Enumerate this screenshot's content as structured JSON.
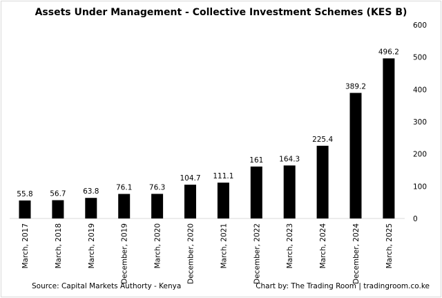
{
  "chart_data": {
    "type": "bar",
    "title": "Assets Under Management - Collective Investment Schemes (KES B)",
    "categories": [
      "March, 2017",
      "March, 2018",
      "March, 2019",
      "December, 2019",
      "March, 2020",
      "December, 2020",
      "March, 2021",
      "December, 2022",
      "March, 2023",
      "March, 2024",
      "December, 2024",
      "March, 2025"
    ],
    "values": [
      55.8,
      56.7,
      63.8,
      76.1,
      76.3,
      104.7,
      111.1,
      161,
      164.3,
      225.4,
      389.2,
      496.2
    ],
    "data_labels": [
      "55.8",
      "56.7",
      "63.8",
      "76.1",
      "76.3",
      "104.7",
      "111.1",
      "161",
      "164.3",
      "225.4",
      "389.2",
      "496.2"
    ],
    "ylim": [
      0,
      600
    ],
    "yticks": [
      0,
      100,
      200,
      300,
      400,
      500,
      600
    ],
    "y_axis_position": "right",
    "grid": false,
    "bar_color": "#000000",
    "xlabel": "",
    "ylabel": ""
  },
  "footer": {
    "source": "Source: Capital Markets Authorty - Kenya",
    "credit": "Chart by: The Trading Room | tradingroom.co.ke"
  }
}
